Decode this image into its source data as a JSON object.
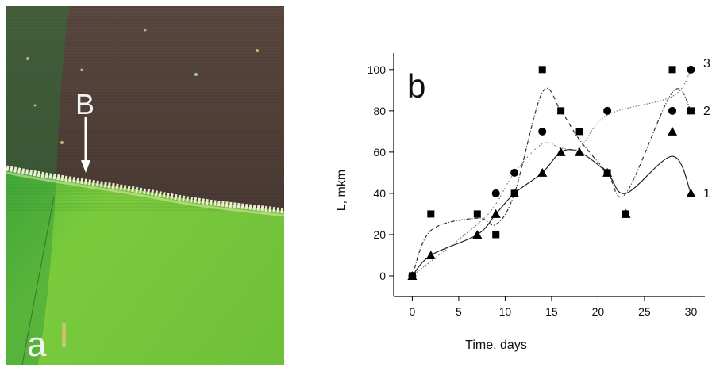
{
  "photo": {
    "label_a": "a",
    "label_B": "B",
    "colors": {
      "upper": "#5b4a41",
      "lower": "#73c83c",
      "edge": "#e8ead0"
    }
  },
  "chart_data": {
    "type": "scatter",
    "panel_label": "b",
    "xlabel": "Time, days",
    "ylabel": "L, mkm",
    "xlim": [
      -2,
      31.5
    ],
    "ylim": [
      -10,
      108
    ],
    "xticks": [
      0,
      5,
      10,
      15,
      20,
      25,
      30
    ],
    "yticks": [
      0,
      20,
      40,
      60,
      80,
      100
    ],
    "grid": false,
    "series": [
      {
        "name": "1",
        "marker": "triangle",
        "line_style": "solid",
        "points": [
          [
            0,
            0
          ],
          [
            2,
            10
          ],
          [
            7,
            20
          ],
          [
            9,
            30
          ],
          [
            11,
            40
          ],
          [
            14,
            50
          ],
          [
            16,
            60
          ],
          [
            18,
            60
          ],
          [
            21,
            50
          ],
          [
            23,
            30
          ],
          [
            28,
            70
          ],
          [
            30,
            40
          ]
        ],
        "curve": [
          [
            0,
            0
          ],
          [
            2,
            10
          ],
          [
            7,
            20
          ],
          [
            9,
            30
          ],
          [
            11,
            40
          ],
          [
            14,
            50
          ],
          [
            16,
            60
          ],
          [
            18,
            60
          ],
          [
            21,
            50
          ],
          [
            23,
            40
          ],
          [
            28,
            58
          ],
          [
            30,
            40
          ]
        ]
      },
      {
        "name": "2",
        "marker": "square",
        "line_style": "dash-dot",
        "points": [
          [
            0,
            0
          ],
          [
            2,
            30
          ],
          [
            7,
            30
          ],
          [
            9,
            20
          ],
          [
            11,
            40
          ],
          [
            14,
            100
          ],
          [
            16,
            80
          ],
          [
            18,
            70
          ],
          [
            21,
            50
          ],
          [
            23,
            30
          ],
          [
            28,
            100
          ],
          [
            30,
            80
          ]
        ],
        "curve": [
          [
            0,
            0
          ],
          [
            2,
            22
          ],
          [
            7,
            28
          ],
          [
            9,
            25
          ],
          [
            11,
            40
          ],
          [
            14,
            89
          ],
          [
            16,
            80
          ],
          [
            18,
            66
          ],
          [
            21,
            50
          ],
          [
            23,
            40
          ],
          [
            28,
            89
          ],
          [
            30,
            80
          ]
        ]
      },
      {
        "name": "3",
        "marker": "circle",
        "line_style": "dotted",
        "points": [
          [
            0,
            0
          ],
          [
            9,
            40
          ],
          [
            11,
            50
          ],
          [
            14,
            70
          ],
          [
            21,
            80
          ],
          [
            28,
            80
          ],
          [
            30,
            100
          ]
        ],
        "curve": [
          [
            0,
            0
          ],
          [
            7,
            25
          ],
          [
            9,
            35
          ],
          [
            11,
            50
          ],
          [
            14,
            64
          ],
          [
            16,
            62
          ],
          [
            18,
            62
          ],
          [
            21,
            78
          ],
          [
            28,
            87
          ],
          [
            30,
            100
          ]
        ]
      }
    ]
  }
}
